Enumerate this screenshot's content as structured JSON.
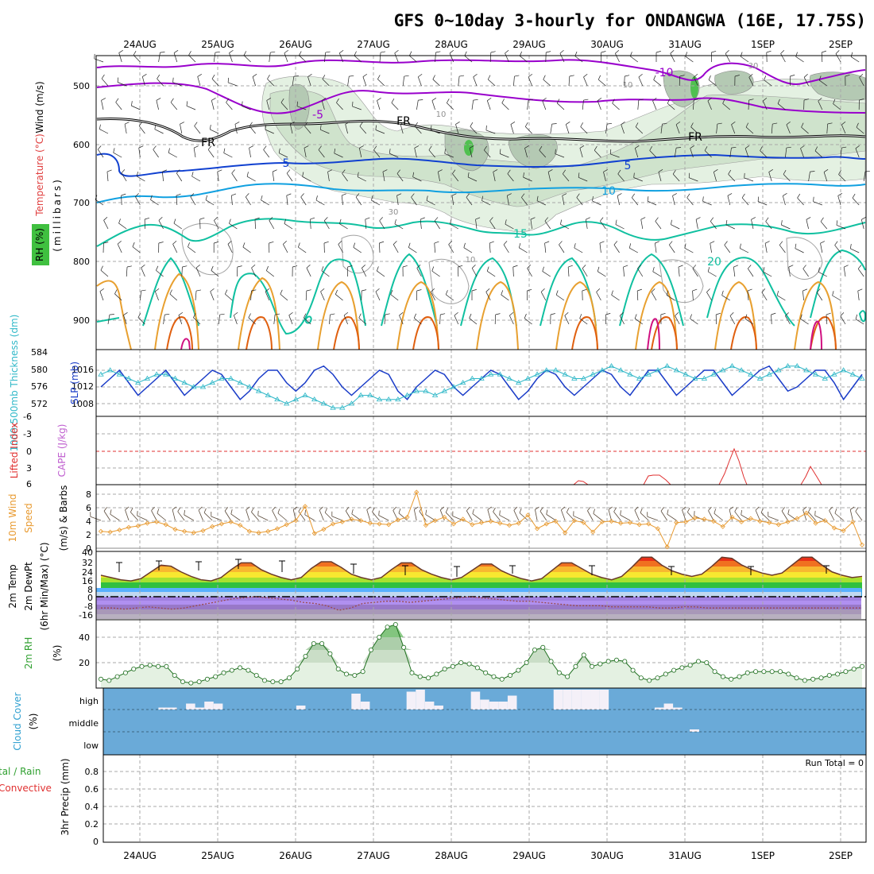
{
  "title": "GFS 0~10day 3-hourly for ONDANGWA (16E, 17.75S)",
  "dates": [
    "24AUG",
    "25AUG",
    "26AUG",
    "27AUG",
    "28AUG",
    "29AUG",
    "30AUG",
    "31AUG",
    "1SEP",
    "2SEP"
  ],
  "colors": {
    "purple": "#9900cc",
    "black": "#000000",
    "blue": "#1040d0",
    "lightblue": "#10a0e0",
    "teal": "#10c0a0",
    "orange": "#e8a030",
    "darkorange": "#e06010",
    "magenta": "#d01080",
    "rh": "#b0d8b0",
    "cloudbg": "#6aaad8",
    "slp": "#1a3cc8",
    "thick": "#30b8c8",
    "wind": "#e89a30",
    "li": "#e03030",
    "dew": "#9a4a4a"
  },
  "panels": {
    "upper": {
      "ylabels": [
        "Wind (m/s)",
        "Temperature (°C)",
        "(millibars)",
        "RH (%)"
      ],
      "yticks": [
        "500",
        "600",
        "700",
        "800",
        "900"
      ],
      "contour_labels": {
        "t_m10": "-10",
        "t_m5": "-5",
        "fr1": "FR",
        "fr2": "FR",
        "fr3": "FR",
        "t_5a": "5",
        "t_5b": "5",
        "t_10": "10",
        "t_15": "15",
        "t_20": "20",
        "rh_10a": "10",
        "rh_10b": "10",
        "rh_30a": "30",
        "rh_30b": "30",
        "rh_10c": "10"
      }
    },
    "slp": {
      "ylabel_left": "1000-500mb Thickness (dm)",
      "ylabel_right": "SLP (mb)",
      "yticks_left": [
        "584",
        "580",
        "576",
        "572"
      ],
      "yticks_right": [
        "1016",
        "1012",
        "1008"
      ]
    },
    "cape": {
      "ylabel_left": "Lifted Index",
      "ylabel_right": "CAPE (J/kg)",
      "yticks": [
        "-6",
        "-3",
        "0",
        "3",
        "6"
      ]
    },
    "wind10": {
      "ylabel": "10m Wind",
      "ylabel2": "Speed",
      "ylabel3": "(m/s) & Barbs",
      "yticks": [
        "8",
        "6",
        "4",
        "2",
        "0"
      ]
    },
    "temp2m": {
      "ylabel": "2m Temp",
      "ylabel2": "2m DewPt",
      "ylabel3": "(6hr Min/Max) (°C)",
      "yticks": [
        "40",
        "32",
        "24",
        "16",
        "8",
        "0",
        "-8",
        "-16"
      ]
    },
    "rh2m": {
      "ylabel": "2m RH",
      "ylabel2": "(%)",
      "yticks": [
        "40",
        "20"
      ]
    },
    "cloud": {
      "ylabel": "Cloud Cover",
      "ylabel2": "(%)",
      "levels": [
        "high",
        "middle",
        "low"
      ]
    },
    "precip": {
      "ylabel": "tal / Rain",
      "ylabel2": "Convective",
      "ylabel3": "3hr Precip (mm)",
      "yticks": [
        "0.8",
        "0.6",
        "0.4",
        "0.2",
        "0"
      ],
      "run_total": "Run Total = 0"
    }
  },
  "chart_data": [
    {
      "type": "line",
      "title": "1000-500mb Thickness (dm) / SLP (mb)",
      "series": [
        {
          "name": "SLP (mb)",
          "values": [
            1012,
            1014,
            1016,
            1013,
            1010,
            1012,
            1014,
            1016,
            1013,
            1010,
            1012,
            1014,
            1016,
            1015,
            1012,
            1009,
            1011,
            1014,
            1016,
            1016,
            1013,
            1011,
            1013,
            1016,
            1017,
            1015,
            1012,
            1010,
            1012,
            1014,
            1016,
            1015,
            1011,
            1009,
            1012,
            1014,
            1016,
            1015,
            1012,
            1010,
            1012,
            1014,
            1016,
            1015,
            1012,
            1009,
            1011,
            1014,
            1016,
            1015,
            1012,
            1010,
            1012,
            1014,
            1016,
            1015,
            1012,
            1010,
            1013,
            1016,
            1016,
            1013,
            1010,
            1012,
            1014,
            1016,
            1016,
            1013,
            1010,
            1012,
            1014,
            1016,
            1017,
            1014,
            1011,
            1012,
            1014,
            1016,
            1016,
            1013,
            1009,
            1012,
            1015
          ]
        },
        {
          "name": "1000-500mb Thickness (dm)",
          "values": [
            579,
            580,
            579,
            578,
            577,
            578,
            579,
            579,
            578,
            577,
            576,
            576,
            577,
            578,
            578,
            577,
            576,
            575,
            574,
            573,
            572,
            573,
            574,
            573,
            572,
            571,
            571,
            572,
            574,
            574,
            573,
            573,
            573,
            574,
            575,
            575,
            574,
            575,
            576,
            577,
            578,
            578,
            579,
            579,
            578,
            577,
            578,
            579,
            580,
            580,
            579,
            578,
            578,
            579,
            580,
            581,
            580,
            579,
            578,
            579,
            580,
            581,
            580,
            579,
            578,
            578,
            579,
            580,
            581,
            580,
            579,
            578,
            579,
            580,
            581,
            581,
            580,
            579,
            578,
            579,
            580,
            579,
            578
          ]
        }
      ]
    },
    {
      "type": "line",
      "title": "Lifted Index / CAPE",
      "series": [
        {
          "name": "Lifted Index",
          "x": [
            "29AUG",
            "30AUG",
            "30AUG",
            "31AUG",
            "31AUG",
            "1SEP",
            "1SEP",
            "2SEP"
          ],
          "values": [
            5.5,
            5.5,
            3,
            3,
            6,
            0,
            6,
            2.5
          ]
        }
      ]
    },
    {
      "type": "line",
      "title": "10m Wind Speed (m/s)",
      "series": [
        {
          "name": "10m Wind Speed",
          "values": [
            2.5,
            2.4,
            2.7,
            3.1,
            3.3,
            3.7,
            3.9,
            3.5,
            2.8,
            2.5,
            2.3,
            2.6,
            3.2,
            3.6,
            3.9,
            3.4,
            2.5,
            2.3,
            2.5,
            2.9,
            3.5,
            4.1,
            6.2,
            2.2,
            2.8,
            3.6,
            3.9,
            4.3,
            4.1,
            3.7,
            3.6,
            3.5,
            4.2,
            4.6,
            8.3,
            3.4,
            4.1,
            4.6,
            3.6,
            4.3,
            3.5,
            3.8,
            4.0,
            3.7,
            3.4,
            3.7,
            4.9,
            2.9,
            3.6,
            4.0,
            2.3,
            4.1,
            3.8,
            2.4,
            3.9,
            4.0,
            3.7,
            3.8,
            3.5,
            3.6,
            2.9,
            0.2,
            3.8,
            3.9,
            4.5,
            4.3,
            4.0,
            3.2,
            4.6,
            3.9,
            4.4,
            4.0,
            3.8,
            3.5,
            3.9,
            4.4,
            5.2,
            3.7,
            4.1,
            3.0,
            2.6,
            3.9,
            0.5
          ]
        }
      ]
    },
    {
      "type": "area",
      "title": "2m Temp / 2m DewPt (°C)",
      "series": [
        {
          "name": "2m Temp",
          "values": [
            19,
            17,
            15,
            14,
            16,
            22,
            28,
            27,
            22,
            18,
            15,
            14,
            17,
            24,
            30,
            30,
            24,
            20,
            17,
            15,
            17,
            25,
            31,
            31,
            26,
            20,
            17,
            15,
            17,
            24,
            30,
            30,
            24,
            20,
            17,
            15,
            17,
            23,
            29,
            29,
            23,
            19,
            16,
            14,
            16,
            23,
            30,
            30,
            25,
            20,
            17,
            15,
            18,
            26,
            35,
            35,
            28,
            23,
            20,
            18,
            20,
            27,
            35,
            34,
            28,
            24,
            21,
            19,
            21,
            28,
            35,
            35,
            28,
            22,
            19,
            17,
            18
          ]
        },
        {
          "name": "2m DewPt",
          "values": [
            -10,
            -10,
            -11,
            -10,
            -9,
            -10,
            -11,
            -10,
            -8,
            -6,
            -4,
            -2,
            -1,
            0,
            -1,
            -2,
            -3,
            -5,
            -6,
            -8,
            -12,
            -10,
            -6,
            -5,
            -4,
            -4,
            -5,
            -4,
            -3,
            -2,
            -1,
            0,
            -1,
            -2,
            -3,
            -4,
            -4,
            -5,
            -6,
            -7,
            -8,
            -8,
            -8,
            -9,
            -9,
            -9,
            -9,
            -10,
            -10,
            -9,
            -9,
            -10,
            -10,
            -10,
            -10,
            -10,
            -10,
            -10,
            -10,
            -10,
            -10,
            -10,
            -10,
            -10,
            -10
          ]
        }
      ]
    },
    {
      "type": "area",
      "title": "2m RH (%)",
      "series": [
        {
          "name": "2m RH",
          "values": [
            7,
            6,
            9,
            12,
            15,
            17,
            18,
            17,
            17,
            10,
            5,
            4,
            5,
            7,
            9,
            12,
            14,
            16,
            14,
            10,
            6,
            5,
            5,
            8,
            15,
            25,
            35,
            35,
            27,
            15,
            11,
            10,
            13,
            30,
            40,
            48,
            50,
            32,
            12,
            9,
            8,
            11,
            15,
            17,
            20,
            19,
            16,
            12,
            9,
            7,
            10,
            14,
            20,
            30,
            32,
            21,
            12,
            9,
            17,
            26,
            17,
            19,
            21,
            22,
            21,
            14,
            8,
            6,
            8,
            11,
            14,
            16,
            18,
            21,
            20,
            13,
            9,
            7,
            9,
            12,
            13,
            13,
            13,
            13,
            11,
            8,
            6,
            7,
            8,
            10,
            11,
            13,
            15,
            17
          ]
        }
      ]
    },
    {
      "type": "bar",
      "title": "Cloud Cover high (%)",
      "series": [
        {
          "name": "high",
          "values": [
            0,
            0,
            0,
            0,
            0,
            0,
            10,
            10,
            0,
            30,
            10,
            40,
            30,
            0,
            0,
            0,
            0,
            0,
            0,
            0,
            0,
            20,
            0,
            0,
            0,
            0,
            0,
            80,
            40,
            0,
            0,
            0,
            0,
            90,
            100,
            40,
            20,
            0,
            0,
            0,
            90,
            50,
            40,
            40,
            70,
            0,
            0,
            0,
            0,
            100,
            100,
            100,
            100,
            100,
            100,
            0,
            0,
            0,
            0,
            0,
            10,
            30,
            10,
            0,
            0,
            0,
            0,
            0,
            0,
            0,
            0,
            0,
            0,
            0,
            0,
            0,
            0,
            0,
            0,
            0,
            0,
            0,
            0
          ]
        }
      ]
    },
    {
      "type": "line",
      "title": "3hr Precip (mm)",
      "ylim": [
        0,
        1
      ],
      "series": [
        {
          "name": "3hr Precip",
          "values": [
            0,
            0,
            0,
            0,
            0,
            0,
            0,
            0,
            0,
            0
          ]
        }
      ]
    }
  ]
}
